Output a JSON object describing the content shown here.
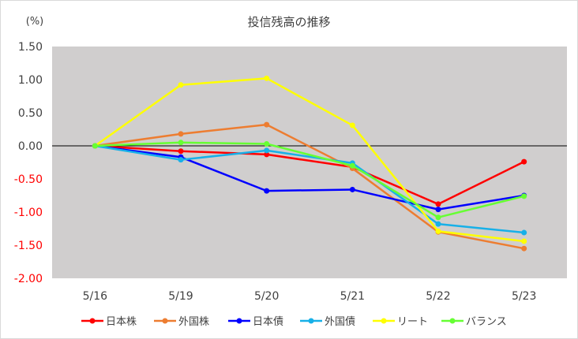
{
  "colors": {
    "plot_background": "#d0cece",
    "axis_positive": "#404040",
    "axis_negative": "#ff0000",
    "zero_line": "#000000"
  },
  "chart_data": {
    "type": "line",
    "title": "投信残高の推移",
    "ylabel": "(%)",
    "xlabel": "",
    "categories": [
      "5/16",
      "5/19",
      "5/20",
      "5/21",
      "5/22",
      "5/23"
    ],
    "ylim": [
      -2.0,
      1.5
    ],
    "yticks": [
      1.5,
      1.0,
      0.5,
      0.0,
      -0.5,
      -1.0,
      -1.5,
      -2.0
    ],
    "ytick_labels": [
      "1.50",
      "1.00",
      "0.50",
      "0.00",
      "-0.50",
      "-1.00",
      "-1.50",
      "-2.00"
    ],
    "grid": false,
    "legend_position": "bottom",
    "series": [
      {
        "name": "日本株",
        "color": "#ff0000",
        "values": [
          0.0,
          -0.08,
          -0.13,
          -0.32,
          -0.88,
          -0.24
        ]
      },
      {
        "name": "外国株",
        "color": "#ed7d31",
        "values": [
          0.0,
          0.18,
          0.32,
          -0.34,
          -1.3,
          -1.55
        ]
      },
      {
        "name": "日本債",
        "color": "#0000ff",
        "values": [
          0.0,
          -0.17,
          -0.68,
          -0.66,
          -0.96,
          -0.75
        ]
      },
      {
        "name": "外国債",
        "color": "#17b0e8",
        "values": [
          0.0,
          -0.21,
          -0.07,
          -0.26,
          -1.18,
          -1.31
        ]
      },
      {
        "name": "リート",
        "color": "#ffff00",
        "values": [
          0.0,
          0.92,
          1.02,
          0.31,
          -1.29,
          -1.44
        ]
      },
      {
        "name": "バランス",
        "color": "#66ff33",
        "values": [
          0.0,
          0.05,
          0.03,
          -0.3,
          -1.08,
          -0.76
        ]
      }
    ]
  }
}
